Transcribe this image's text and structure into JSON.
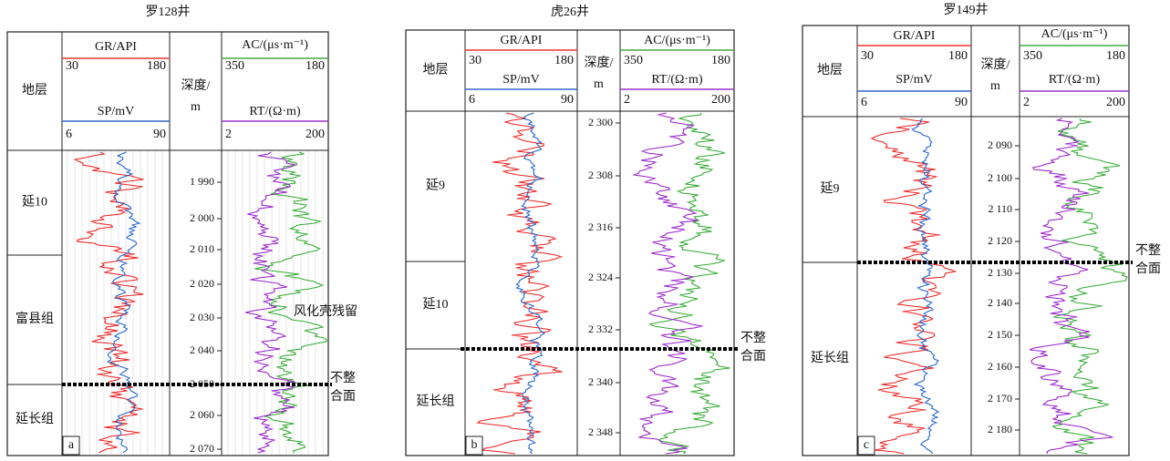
{
  "panels": [
    {
      "title": "罗128井",
      "stratum_header": "地层",
      "depth_header": [
        "深度/",
        "m"
      ],
      "gr": {
        "label": "GR/API",
        "min": "30",
        "max": "180"
      },
      "sp": {
        "label": "SP/mV",
        "min": "6",
        "max": "90"
      },
      "ac": {
        "label": "AC/(μs·m⁻¹)",
        "min": "350",
        "max": "180"
      },
      "rt": {
        "label": "RT/(Ω·m)",
        "min": "2",
        "max": "200"
      },
      "layers": [
        "延10",
        "富县组",
        "延长组"
      ],
      "depth_ticks": [
        "1 990",
        "2 000",
        "2 010",
        "2 020",
        "2 030",
        "2 040",
        "2 050",
        "2 060",
        "2 070"
      ],
      "annotations": [
        "风化壳残留"
      ],
      "unconformity": [
        "不整",
        "合面"
      ],
      "tag": "a"
    },
    {
      "title": "虎26井",
      "stratum_header": "地层",
      "depth_header": [
        "深度/",
        "m"
      ],
      "gr": {
        "label": "GR/API",
        "min": "30",
        "max": "180"
      },
      "sp": {
        "label": "SP/mV",
        "min": "6",
        "max": "90"
      },
      "ac": {
        "label": "AC/(μs·m⁻¹)",
        "min": "350",
        "max": "180"
      },
      "rt": {
        "label": "RT/(Ω·m)",
        "min": "2",
        "max": "200"
      },
      "layers": [
        "延9",
        "延10",
        "延长组"
      ],
      "depth_ticks": [
        "2 300",
        "2 308",
        "2 316",
        "2 324",
        "2 332",
        "2 340",
        "2 348"
      ],
      "annotations": [],
      "unconformity": [
        "不整",
        "合面"
      ],
      "tag": "b"
    },
    {
      "title": "罗149井",
      "stratum_header": "地层",
      "depth_header": [
        "深度/",
        "m"
      ],
      "gr": {
        "label": "GR/API",
        "min": "30",
        "max": "180"
      },
      "sp": {
        "label": "SP/mV",
        "min": "6",
        "max": "90"
      },
      "ac": {
        "label": "AC/(μs·m⁻¹)",
        "min": "350",
        "max": "180"
      },
      "rt": {
        "label": "RT/(Ω·m)",
        "min": "2",
        "max": "200"
      },
      "layers": [
        "延9",
        "延长组"
      ],
      "depth_ticks": [
        "2 090",
        "2 100",
        "2 110",
        "2 120",
        "2 130",
        "2 140",
        "2 150",
        "2 160",
        "2 170",
        "2 180"
      ],
      "annotations": [],
      "unconformity": [
        "不整",
        "合面"
      ],
      "tag": "c"
    }
  ]
}
